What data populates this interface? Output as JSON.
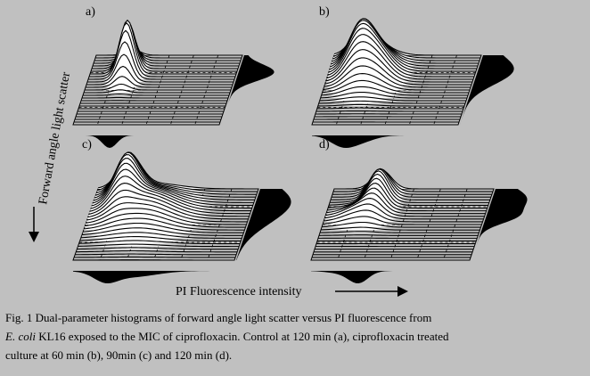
{
  "figure": {
    "y_axis_label": "Forward angle light scatter",
    "x_axis_label": "PI Fluorescence intensity",
    "panels": [
      {
        "label": "a)"
      },
      {
        "label": "b)"
      },
      {
        "label": "c)"
      },
      {
        "label": "d)"
      }
    ]
  },
  "caption": {
    "line1": "Fig. 1  Dual-parameter histograms of forward angle light scatter versus PI fluorescence from",
    "line2_species": "E. coli",
    "line2_rest": " KL16 exposed to the MIC of ciprofloxacin. Control at 120 min (a), ciprofloxacin treated",
    "line3": "culture at 60 min (b), 90min (c) and 120 min (d)."
  }
}
